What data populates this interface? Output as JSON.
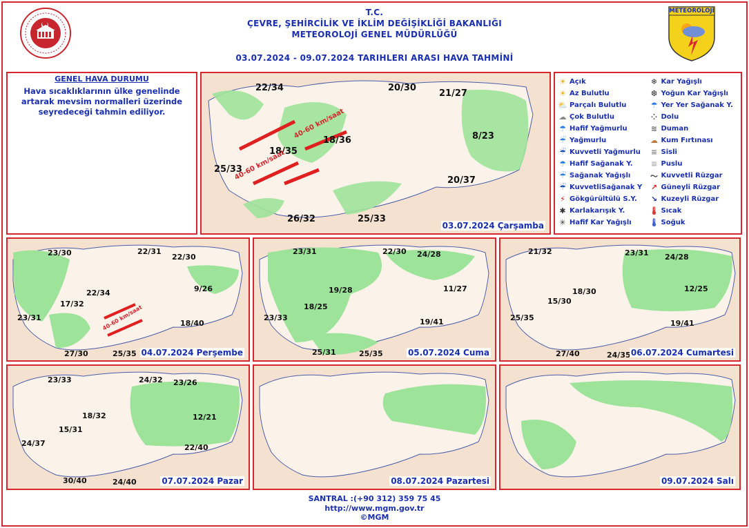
{
  "header": {
    "line1": "T.C.",
    "line2": "ÇEVRE, ŞEHİRCİLİK VE İKLİM DEĞİŞİKLİĞİ BAKANLIĞI",
    "line3": "METEOROLOJİ  GENEL  MÜDÜRLÜĞÜ",
    "period": "03.07.2024  -  09.07.2024   TARIHLERI  ARASI  HAVA  TAHMİNİ",
    "logo_right_text": "METEOROLOJİ"
  },
  "genel": {
    "title": "GENEL HAVA DURUMU",
    "text": "Hava sıcaklıklarının ülke genelinde artarak mevsim normalleri üzerinde seyredeceği tahmin ediliyor."
  },
  "legend": [
    {
      "label": "Açık",
      "icon": "sun-icon"
    },
    {
      "label": "Kar Yağışlı",
      "icon": "snow-icon"
    },
    {
      "label": "Az Bulutlu",
      "icon": "few-clouds-icon"
    },
    {
      "label": "Yoğun Kar Yağışlı",
      "icon": "heavy-snow-icon"
    },
    {
      "label": "Parçalı Bulutlu",
      "icon": "partly-cloudy-icon"
    },
    {
      "label": "Yer Yer Sağanak Y.",
      "icon": "scattered-showers-icon"
    },
    {
      "label": "Çok Bulutlu",
      "icon": "cloudy-icon"
    },
    {
      "label": "Dolu",
      "icon": "hail-icon"
    },
    {
      "label": "Hafif Yağmurlu",
      "icon": "light-rain-icon"
    },
    {
      "label": "Duman",
      "icon": "smoke-icon"
    },
    {
      "label": "Yağmurlu",
      "icon": "rain-icon"
    },
    {
      "label": "Kum Fırtınası",
      "icon": "sandstorm-icon"
    },
    {
      "label": "Kuvvetli Yağmurlu",
      "icon": "heavy-rain-icon"
    },
    {
      "label": "Sisli",
      "icon": "fog-icon"
    },
    {
      "label": "Hafif Sağanak Y.",
      "icon": "light-shower-icon"
    },
    {
      "label": "Puslu",
      "icon": "haze-icon"
    },
    {
      "label": "Sağanak Yağışlı",
      "icon": "shower-icon"
    },
    {
      "label": "Kuvvetli Rüzgar",
      "icon": "strong-wind-icon"
    },
    {
      "label": "KuvvetliSağanak Y",
      "icon": "heavy-shower-icon"
    },
    {
      "label": "Güneyli Rüzgar",
      "icon": "south-wind-icon"
    },
    {
      "label": "Gökgürültülü S.Y.",
      "icon": "thunderstorm-icon"
    },
    {
      "label": "Kuzeyli Rüzgar",
      "icon": "north-wind-icon"
    },
    {
      "label": "Karlakarışık Y.",
      "icon": "sleet-icon"
    },
    {
      "label": "Sıcak",
      "icon": "hot-icon"
    },
    {
      "label": "Hafif Kar Yağışlı",
      "icon": "light-snow-icon"
    },
    {
      "label": "Soğuk",
      "icon": "cold-icon"
    }
  ],
  "days": [
    {
      "date": "03.07.2024 Çarşamba",
      "temps": [
        "22/34",
        "20/30",
        "21/27",
        "8/23",
        "18/35",
        "18/36",
        "25/33",
        "20/37",
        "26/32",
        "25/33"
      ],
      "wind": [
        "40-60 km/saat",
        "40-60 km/saat"
      ]
    },
    {
      "date": "04.07.2024 Perşembe",
      "temps": [
        "23/30",
        "22/31",
        "22/30",
        "22/34",
        "9/26",
        "17/32",
        "23/31",
        "18/40",
        "27/30",
        "25/35"
      ],
      "wind": [
        "40-60 km/saat"
      ]
    },
    {
      "date": "05.07.2024 Cuma",
      "temps": [
        "23/31",
        "22/30",
        "24/28",
        "19/28",
        "11/27",
        "18/25",
        "23/33",
        "19/41",
        "25/31",
        "25/35"
      ]
    },
    {
      "date": "06.07.2024 Cumartesi",
      "temps": [
        "21/32",
        "23/31",
        "24/28",
        "18/30",
        "12/25",
        "15/30",
        "25/35",
        "19/41",
        "27/40",
        "24/35"
      ]
    },
    {
      "date": "07.07.2024 Pazar",
      "temps": [
        "23/33",
        "24/32",
        "23/26",
        "18/32",
        "12/21",
        "15/31",
        "24/37",
        "22/40",
        "30/40",
        "24/40"
      ]
    },
    {
      "date": "08.07.2024 Pazartesi",
      "temps": []
    },
    {
      "date": "09.07.2024 Salı",
      "temps": []
    }
  ],
  "footer": {
    "santral": "SANTRAL :(+90 312) 359 75 45",
    "url": "http://www.mgm.gov.tr",
    "copy": "©MGM"
  },
  "colors": {
    "frame": "#d6262e",
    "text": "#1a2fb0",
    "land": "#f5e1cf",
    "green": "#9ee39a"
  }
}
